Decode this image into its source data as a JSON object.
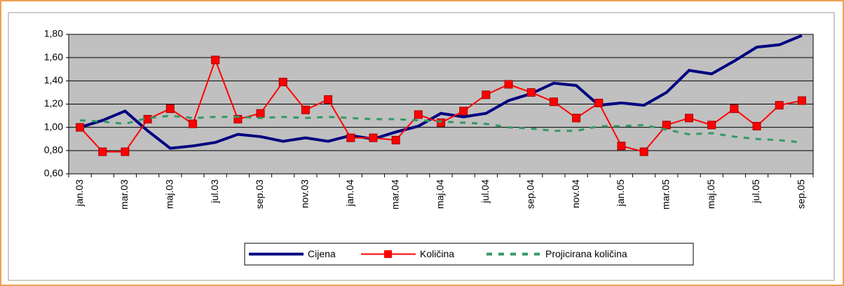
{
  "chart_data": {
    "type": "line",
    "categories": [
      "jan.03",
      null,
      "mar.03",
      null,
      "maj.03",
      null,
      "jul.03",
      null,
      "sep.03",
      null,
      "nov.03",
      null,
      "jan.04",
      null,
      "mar.04",
      null,
      "maj.04",
      null,
      "jul.04",
      null,
      "sep.04",
      null,
      "nov.04",
      null,
      "jan.05",
      null,
      "mar.05",
      null,
      "maj.05",
      null,
      "jul.05",
      null,
      "sep.05"
    ],
    "series": [
      {
        "name": "Cijena",
        "color": "#000080",
        "style": "solid",
        "marker": null,
        "values": [
          1.0,
          1.06,
          1.14,
          0.97,
          0.82,
          0.84,
          0.87,
          0.94,
          0.92,
          0.88,
          0.91,
          0.88,
          0.93,
          0.9,
          0.96,
          1.01,
          1.12,
          1.09,
          1.12,
          1.23,
          1.29,
          1.38,
          1.36,
          1.19,
          1.21,
          1.19,
          1.3,
          1.49,
          1.46,
          1.57,
          1.69,
          1.71,
          1.79
        ]
      },
      {
        "name": "Količina",
        "color": "#ff0000",
        "style": "solid",
        "marker": "square",
        "values": [
          1.0,
          0.79,
          0.79,
          1.07,
          1.16,
          1.03,
          1.58,
          1.07,
          1.12,
          1.39,
          1.15,
          1.24,
          0.91,
          0.91,
          0.89,
          1.11,
          1.04,
          1.14,
          1.28,
          1.37,
          1.3,
          1.22,
          1.08,
          1.21,
          0.84,
          0.79,
          1.02,
          1.08,
          1.02,
          1.16,
          1.01,
          1.19,
          1.23
        ]
      },
      {
        "name": "Projicirana količina",
        "color": "#339966",
        "style": "dashed",
        "marker": null,
        "values": [
          1.06,
          1.05,
          1.03,
          1.08,
          1.1,
          1.08,
          1.09,
          1.09,
          1.08,
          1.09,
          1.08,
          1.09,
          1.08,
          1.07,
          1.07,
          1.06,
          1.05,
          1.04,
          1.03,
          1.0,
          0.99,
          0.97,
          0.97,
          1.01,
          1.01,
          1.02,
          0.98,
          0.94,
          0.95,
          0.92,
          0.9,
          0.89,
          0.87
        ]
      }
    ],
    "ylim": [
      0.6,
      1.8
    ],
    "yticks": [
      {
        "value": 0.6,
        "label": "0,60"
      },
      {
        "value": 0.8,
        "label": "0,80"
      },
      {
        "value": 1.0,
        "label": "1,00"
      },
      {
        "value": 1.2,
        "label": "1,20"
      },
      {
        "value": 1.4,
        "label": "1,40"
      },
      {
        "value": 1.6,
        "label": "1,60"
      },
      {
        "value": 1.8,
        "label": "1,80"
      }
    ],
    "grid": true,
    "legend": "bottom"
  }
}
